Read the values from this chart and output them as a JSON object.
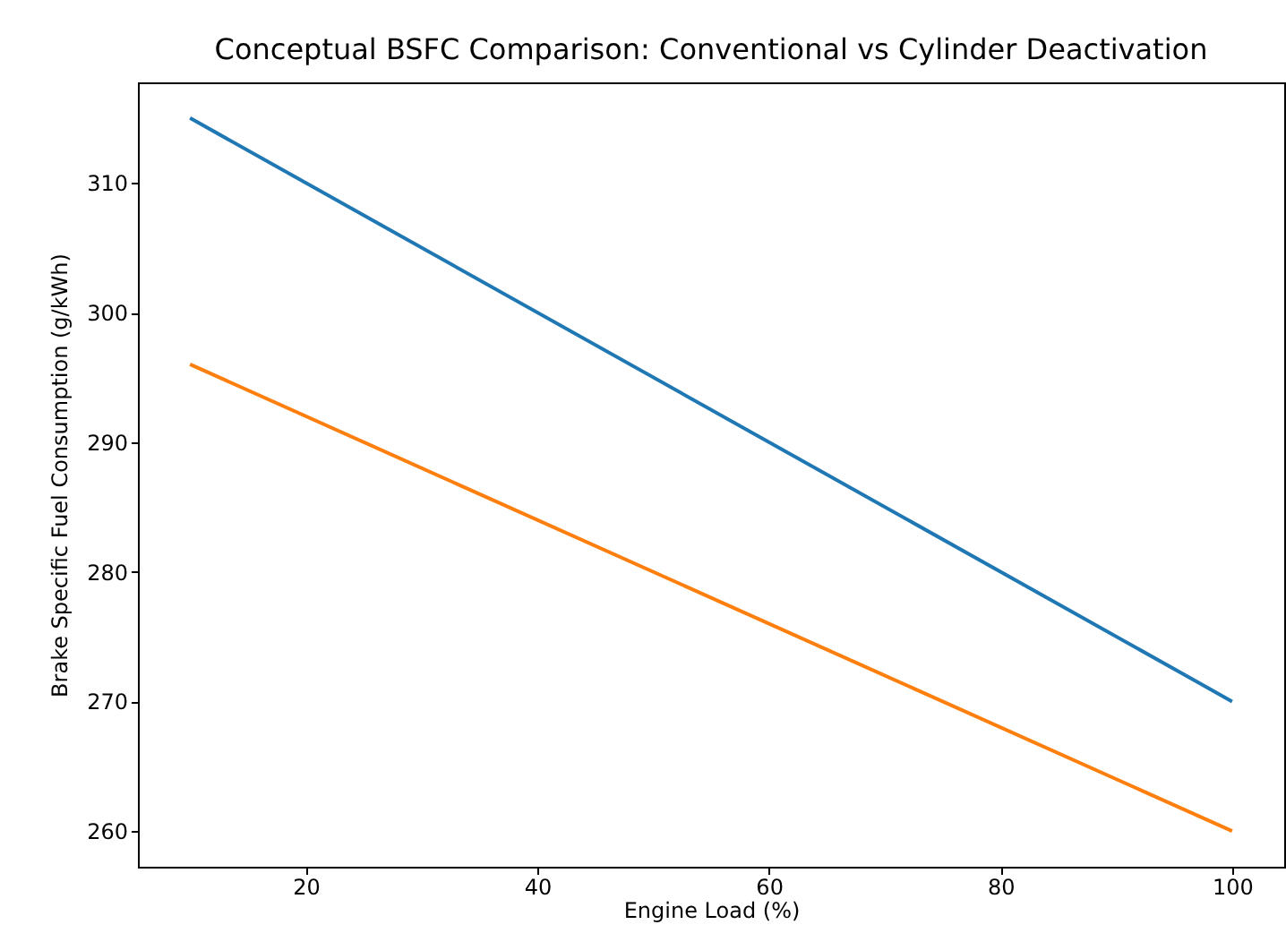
{
  "chart_data": {
    "type": "line",
    "title": "Conceptual BSFC Comparison: Conventional vs Cylinder Deactivation",
    "xlabel": "Engine Load (%)",
    "ylabel": "Brake Specific Fuel Consumption (g/kWh)",
    "x": [
      10,
      100
    ],
    "series": [
      {
        "color": "#1f77b4",
        "values": [
          315,
          270
        ]
      },
      {
        "color": "#ff7f0e",
        "values": [
          296,
          260
        ]
      }
    ],
    "xlim": [
      5.5,
      104.5
    ],
    "xticks": [
      20,
      40,
      60,
      80,
      100
    ],
    "ylim": [
      257.25,
      317.75
    ],
    "yticks": [
      260,
      270,
      280,
      290,
      300,
      310
    ],
    "grid": false,
    "legend": false,
    "line_style": "solid"
  }
}
